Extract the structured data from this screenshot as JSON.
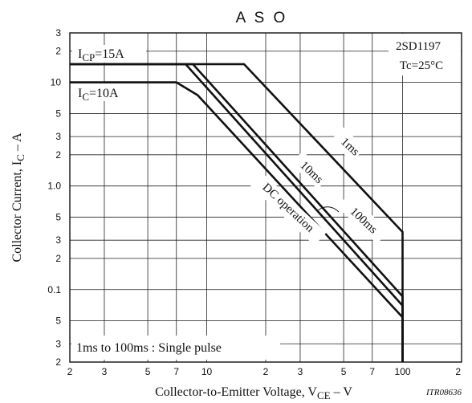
{
  "chart_data": {
    "type": "line",
    "title": "A S O",
    "part_number": "2SD1197",
    "condition": "Tc=25°C",
    "doc_code": "ITR08636",
    "footnote": "1ms to 100ms : Single pulse",
    "xlabel": {
      "main": "Collector-to-Emitter Voltage, V",
      "sub": "CE",
      "tail": "  –  V"
    },
    "ylabel": {
      "main": "Collector Current, I",
      "sub": "C",
      "tail": "  –  A"
    },
    "x_scale": "log",
    "y_scale": "log",
    "xlim": [
      2,
      200
    ],
    "ylim": [
      0.02,
      30
    ],
    "grid": true,
    "x_ticks": [
      {
        "v": 2,
        "t": "2"
      },
      {
        "v": 3,
        "t": "3"
      },
      {
        "v": 5,
        "t": "5"
      },
      {
        "v": 7,
        "t": "7"
      },
      {
        "v": 10,
        "t": "10"
      },
      {
        "v": 20,
        "t": "2"
      },
      {
        "v": 30,
        "t": "3"
      },
      {
        "v": 50,
        "t": "5"
      },
      {
        "v": 70,
        "t": "7"
      },
      {
        "v": 100,
        "t": "100"
      },
      {
        "v": 200,
        "t": "2"
      }
    ],
    "y_ticks": [
      {
        "v": 30,
        "t": "3"
      },
      {
        "v": 20,
        "t": "2"
      },
      {
        "v": 10,
        "t": "10"
      },
      {
        "v": 5,
        "t": "5"
      },
      {
        "v": 3,
        "t": "3"
      },
      {
        "v": 2,
        "t": "2"
      },
      {
        "v": 1,
        "t": "1.0"
      },
      {
        "v": 0.5,
        "t": "5"
      },
      {
        "v": 0.3,
        "t": "3"
      },
      {
        "v": 0.2,
        "t": "2"
      },
      {
        "v": 0.1,
        "t": "0.1"
      },
      {
        "v": 0.05,
        "t": "5"
      },
      {
        "v": 0.03,
        "t": "3"
      },
      {
        "v": 0.02,
        "t": "2"
      }
    ],
    "annotations": [
      {
        "key": "icp",
        "main": "I",
        "sub": "CP",
        "tail": "=15A",
        "value_a": 15
      },
      {
        "key": "ic",
        "main": "I",
        "sub": "C",
        "tail": "=10A",
        "value_a": 10
      }
    ],
    "series": [
      {
        "name": "1ms",
        "points": [
          [
            2,
            15
          ],
          [
            15.5,
            15
          ],
          [
            100,
            0.36
          ],
          [
            100,
            0.02
          ]
        ]
      },
      {
        "name": "10ms",
        "points": [
          [
            2,
            15
          ],
          [
            8.5,
            15
          ],
          [
            100,
            0.086
          ],
          [
            100,
            0.02
          ]
        ]
      },
      {
        "name": "100ms",
        "points": [
          [
            2,
            15
          ],
          [
            7.8,
            15
          ],
          [
            100,
            0.07
          ],
          [
            100,
            0.02
          ]
        ]
      },
      {
        "name": "DC operation",
        "points": [
          [
            2,
            10
          ],
          [
            7,
            10
          ],
          [
            9,
            7.5
          ],
          [
            100,
            0.054
          ],
          [
            100,
            0.02
          ]
        ]
      }
    ]
  }
}
